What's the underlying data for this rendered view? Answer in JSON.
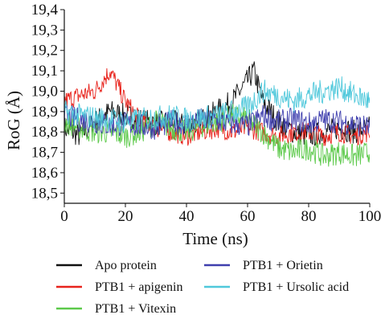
{
  "chart_data": {
    "type": "line",
    "xlabel": "Time (ns)",
    "ylabel": "RoG (Å)",
    "xlim": [
      0,
      100
    ],
    "ylim": [
      18.45,
      19.4
    ],
    "x_ticks": [
      "0",
      "20",
      "40",
      "60",
      "80",
      "100"
    ],
    "y_ticks": [
      "18,5",
      "18,6",
      "18,7",
      "18,8",
      "18,9",
      "19,0",
      "19,1",
      "19,2",
      "19,3",
      "19,4"
    ],
    "grid": false,
    "legend_position": "bottom",
    "series": [
      {
        "name": "Apo protein",
        "color": "#111111",
        "x": [
          0,
          5,
          10,
          15,
          20,
          25,
          30,
          35,
          40,
          45,
          50,
          55,
          60,
          62,
          65,
          70,
          75,
          80,
          85,
          90,
          95,
          100
        ],
        "values": [
          18.82,
          18.78,
          18.85,
          18.9,
          18.88,
          18.86,
          18.84,
          18.85,
          18.83,
          18.86,
          18.9,
          18.95,
          19.05,
          19.1,
          18.95,
          18.85,
          18.8,
          18.78,
          18.8,
          18.82,
          18.8,
          18.82
        ]
      },
      {
        "name": "PTB1 + apigenin",
        "color": "#e8231c",
        "x": [
          0,
          5,
          10,
          15,
          20,
          25,
          30,
          35,
          40,
          45,
          50,
          55,
          60,
          65,
          70,
          75,
          80,
          85,
          90,
          95,
          100
        ],
        "values": [
          18.95,
          18.98,
          19.0,
          19.1,
          18.95,
          18.85,
          18.82,
          18.8,
          18.78,
          18.8,
          18.82,
          18.8,
          18.82,
          18.8,
          18.78,
          18.8,
          18.8,
          18.78,
          18.8,
          18.78,
          18.8
        ]
      },
      {
        "name": "PTB1 + Vitexin",
        "color": "#5cc94a",
        "x": [
          0,
          5,
          10,
          15,
          20,
          25,
          30,
          35,
          40,
          45,
          50,
          55,
          60,
          65,
          70,
          75,
          80,
          85,
          90,
          95,
          100
        ],
        "values": [
          18.85,
          18.82,
          18.8,
          18.8,
          18.78,
          18.8,
          18.85,
          18.82,
          18.8,
          18.83,
          18.85,
          18.88,
          18.86,
          18.8,
          18.72,
          18.7,
          18.72,
          18.68,
          18.7,
          18.68,
          18.7
        ]
      },
      {
        "name": "PTB1 + Orietin",
        "color": "#3f3fae",
        "x": [
          0,
          5,
          10,
          15,
          20,
          25,
          30,
          35,
          40,
          45,
          50,
          55,
          60,
          65,
          70,
          75,
          80,
          85,
          90,
          95,
          100
        ],
        "values": [
          18.88,
          18.86,
          18.85,
          18.83,
          18.84,
          18.83,
          18.82,
          18.85,
          18.84,
          18.86,
          18.85,
          18.84,
          18.83,
          18.88,
          18.85,
          18.86,
          18.84,
          18.86,
          18.85,
          18.84,
          18.82
        ]
      },
      {
        "name": "PTB1 + Ursolic acid",
        "color": "#4fc8db",
        "x": [
          0,
          5,
          10,
          15,
          20,
          25,
          30,
          35,
          40,
          45,
          50,
          55,
          60,
          65,
          70,
          75,
          80,
          85,
          90,
          95,
          100
        ],
        "values": [
          18.9,
          18.88,
          18.87,
          18.86,
          18.85,
          18.86,
          18.87,
          18.88,
          18.86,
          18.87,
          18.88,
          18.9,
          18.92,
          19.0,
          18.98,
          18.95,
          18.98,
          19.0,
          19.02,
          18.98,
          18.95
        ]
      }
    ]
  }
}
